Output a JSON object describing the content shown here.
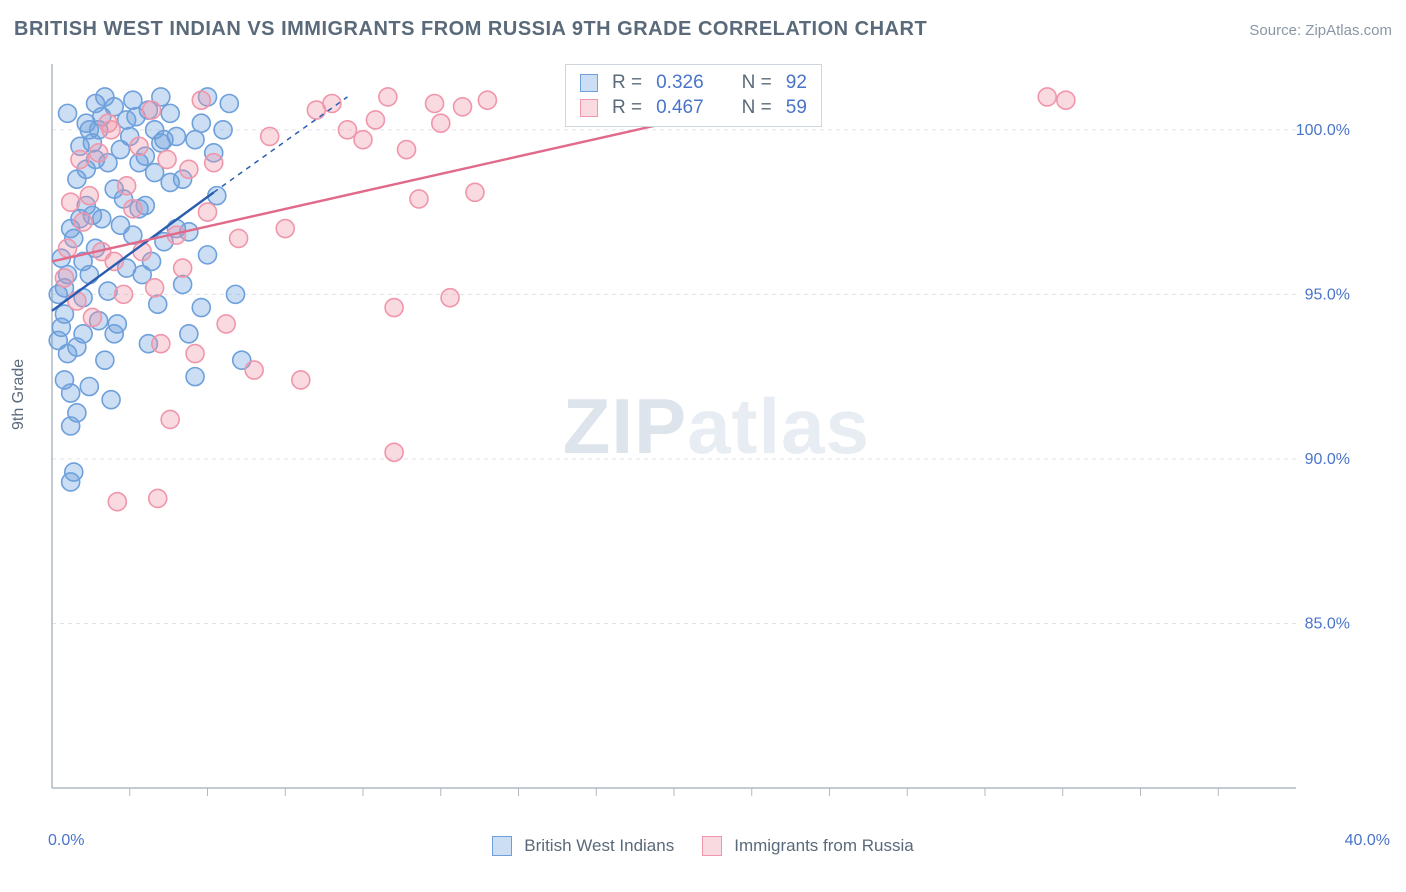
{
  "title": "BRITISH WEST INDIAN VS IMMIGRANTS FROM RUSSIA 9TH GRADE CORRELATION CHART",
  "source_label": "Source: ",
  "source_name": "ZipAtlas.com",
  "y_axis_label": "9th Grade",
  "watermark_zip": "ZIP",
  "watermark_atlas": "atlas",
  "chart": {
    "type": "scatter",
    "x_min": 0.0,
    "x_max": 40.0,
    "y_min": 80.0,
    "y_max": 102.0,
    "x_ticks_minor": [
      2.5,
      5,
      7.5,
      10,
      12.5,
      15,
      17.5,
      20,
      22.5,
      25,
      27.5,
      30,
      32.5,
      35,
      37.5
    ],
    "x_tick_labels": {
      "left": "0.0%",
      "right": "40.0%"
    },
    "y_ticks": [
      85.0,
      90.0,
      95.0,
      100.0
    ],
    "y_tick_labels": [
      "85.0%",
      "90.0%",
      "95.0%",
      "100.0%"
    ],
    "grid_color": "#e0e4ea",
    "axis_color": "#b0b8c2",
    "background_color": "#ffffff",
    "marker_radius": 9,
    "marker_stroke_width": 1.6,
    "trend_line_width": 2.4,
    "series": [
      {
        "name": "British West Indians",
        "key": "bwi",
        "fill": "rgba(110,160,220,0.35)",
        "stroke": "#6ea0dc",
        "trend_stroke": "#2a5db0",
        "trend": {
          "x1": 0.0,
          "y1": 94.5,
          "x2": 5.2,
          "y2": 98.1,
          "x_dash_to": 9.5,
          "y_dash_to": 101.0
        },
        "R_label": "R = ",
        "R": "0.326",
        "N_label": "N = ",
        "N": "92",
        "points": [
          [
            0.3,
            94.0
          ],
          [
            0.4,
            95.2
          ],
          [
            0.5,
            93.2
          ],
          [
            0.6,
            89.3
          ],
          [
            0.7,
            89.6
          ],
          [
            0.6,
            91.0
          ],
          [
            0.8,
            91.4
          ],
          [
            1.0,
            96.0
          ],
          [
            1.1,
            97.7
          ],
          [
            1.2,
            100.0
          ],
          [
            1.3,
            99.6
          ],
          [
            1.4,
            100.8
          ],
          [
            1.5,
            100.0
          ],
          [
            1.6,
            100.4
          ],
          [
            1.8,
            99.0
          ],
          [
            2.0,
            98.2
          ],
          [
            2.2,
            97.1
          ],
          [
            2.4,
            95.8
          ],
          [
            2.6,
            96.8
          ],
          [
            2.8,
            97.6
          ],
          [
            3.0,
            99.2
          ],
          [
            3.1,
            100.6
          ],
          [
            3.3,
            100.0
          ],
          [
            3.5,
            101.0
          ],
          [
            3.6,
            99.7
          ],
          [
            3.8,
            98.4
          ],
          [
            4.0,
            97.0
          ],
          [
            4.2,
            95.3
          ],
          [
            4.4,
            93.8
          ],
          [
            4.6,
            92.5
          ],
          [
            4.8,
            94.6
          ],
          [
            5.0,
            96.2
          ],
          [
            5.2,
            99.3
          ],
          [
            5.5,
            100.0
          ],
          [
            5.7,
            100.8
          ],
          [
            5.9,
            95.0
          ],
          [
            6.1,
            93.0
          ],
          [
            1.0,
            93.8
          ],
          [
            1.2,
            92.2
          ],
          [
            0.9,
            97.3
          ],
          [
            1.1,
            100.2
          ],
          [
            0.7,
            96.7
          ],
          [
            0.8,
            98.5
          ],
          [
            0.5,
            95.6
          ],
          [
            0.6,
            97.0
          ],
          [
            0.4,
            94.4
          ],
          [
            0.3,
            96.1
          ],
          [
            0.2,
            95.0
          ],
          [
            0.2,
            93.6
          ],
          [
            0.4,
            92.4
          ],
          [
            0.6,
            92.0
          ],
          [
            0.8,
            93.4
          ],
          [
            1.0,
            94.9
          ],
          [
            1.2,
            95.6
          ],
          [
            1.4,
            96.4
          ],
          [
            1.6,
            97.3
          ],
          [
            1.8,
            95.1
          ],
          [
            2.0,
            93.8
          ],
          [
            2.2,
            99.4
          ],
          [
            2.4,
            100.3
          ],
          [
            2.6,
            100.9
          ],
          [
            2.8,
            99.0
          ],
          [
            3.0,
            97.7
          ],
          [
            3.2,
            96.0
          ],
          [
            3.4,
            94.7
          ],
          [
            3.6,
            96.6
          ],
          [
            3.8,
            100.5
          ],
          [
            4.0,
            99.8
          ],
          [
            4.2,
            98.5
          ],
          [
            4.4,
            96.9
          ],
          [
            4.6,
            99.7
          ],
          [
            4.8,
            100.2
          ],
          [
            5.0,
            101.0
          ],
          [
            5.3,
            98.0
          ],
          [
            0.9,
            99.5
          ],
          [
            1.1,
            98.8
          ],
          [
            1.3,
            97.4
          ],
          [
            1.5,
            94.2
          ],
          [
            1.7,
            93.0
          ],
          [
            1.9,
            91.8
          ],
          [
            2.1,
            94.1
          ],
          [
            2.3,
            97.9
          ],
          [
            2.5,
            99.8
          ],
          [
            2.7,
            100.4
          ],
          [
            2.9,
            95.6
          ],
          [
            3.1,
            93.5
          ],
          [
            3.3,
            98.7
          ],
          [
            3.5,
            99.6
          ],
          [
            2.0,
            100.7
          ],
          [
            1.7,
            101.0
          ],
          [
            1.4,
            99.1
          ],
          [
            0.5,
            100.5
          ]
        ]
      },
      {
        "name": "Immigrants from Russia",
        "key": "russia",
        "fill": "rgba(240,150,170,0.35)",
        "stroke": "#f096aa",
        "trend_stroke": "#e16a8a",
        "trend": {
          "x1": 0.0,
          "y1": 96.0,
          "x2": 23.5,
          "y2": 101.0
        },
        "R_label": "R = ",
        "R": "0.467",
        "N_label": "N = ",
        "N": "59",
        "points": [
          [
            0.5,
            96.4
          ],
          [
            0.8,
            94.8
          ],
          [
            1.0,
            97.2
          ],
          [
            1.2,
            98.0
          ],
          [
            1.5,
            99.3
          ],
          [
            1.8,
            100.2
          ],
          [
            2.0,
            96.0
          ],
          [
            2.3,
            95.0
          ],
          [
            2.6,
            97.6
          ],
          [
            2.8,
            99.5
          ],
          [
            3.2,
            100.6
          ],
          [
            3.5,
            93.5
          ],
          [
            3.8,
            91.2
          ],
          [
            4.0,
            96.8
          ],
          [
            4.4,
            98.8
          ],
          [
            4.8,
            100.9
          ],
          [
            5.2,
            99.0
          ],
          [
            5.6,
            94.1
          ],
          [
            6.0,
            96.7
          ],
          [
            6.5,
            92.7
          ],
          [
            7.0,
            99.8
          ],
          [
            7.5,
            97.0
          ],
          [
            8.0,
            92.4
          ],
          [
            8.5,
            100.6
          ],
          [
            9.0,
            100.8
          ],
          [
            9.5,
            100.0
          ],
          [
            10.0,
            99.7
          ],
          [
            10.4,
            100.3
          ],
          [
            10.8,
            101.0
          ],
          [
            11.0,
            94.6
          ],
          [
            11.4,
            99.4
          ],
          [
            11.8,
            97.9
          ],
          [
            12.3,
            100.8
          ],
          [
            12.8,
            94.9
          ],
          [
            13.2,
            100.7
          ],
          [
            13.6,
            98.1
          ],
          [
            14.0,
            100.9
          ],
          [
            20.2,
            100.8
          ],
          [
            22.8,
            100.8
          ],
          [
            24.0,
            101.0
          ],
          [
            32.0,
            101.0
          ],
          [
            32.6,
            100.9
          ],
          [
            2.1,
            88.7
          ],
          [
            3.4,
            88.8
          ],
          [
            0.4,
            95.5
          ],
          [
            0.6,
            97.8
          ],
          [
            0.9,
            99.1
          ],
          [
            1.3,
            94.3
          ],
          [
            1.6,
            96.3
          ],
          [
            1.9,
            100.0
          ],
          [
            2.4,
            98.3
          ],
          [
            2.9,
            96.3
          ],
          [
            3.3,
            95.2
          ],
          [
            3.7,
            99.1
          ],
          [
            4.2,
            95.8
          ],
          [
            4.6,
            93.2
          ],
          [
            5.0,
            97.5
          ],
          [
            11.0,
            90.2
          ],
          [
            12.5,
            100.2
          ]
        ]
      }
    ]
  },
  "legend": {
    "series1": "British West Indians",
    "series2": "Immigrants from Russia"
  }
}
